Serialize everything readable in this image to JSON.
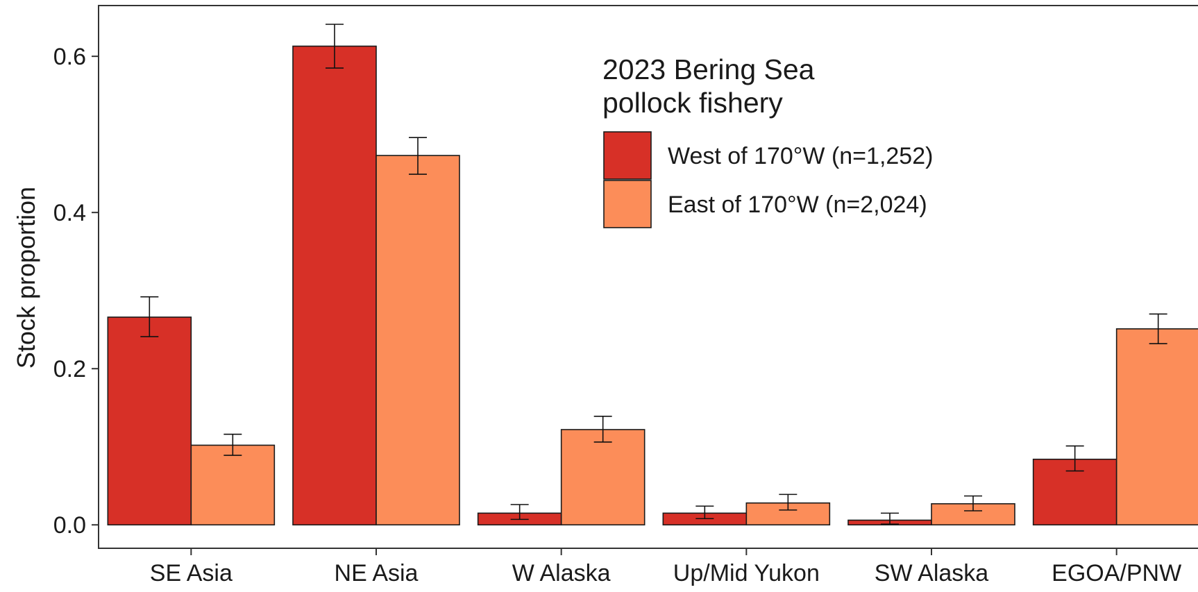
{
  "chart_data": {
    "type": "bar",
    "title": "",
    "xlabel": "",
    "ylabel": "Stock proportion",
    "ylim": [
      -0.03,
      0.665
    ],
    "yticks": [
      0.0,
      0.2,
      0.4,
      0.6
    ],
    "ytick_labels": [
      "0.0",
      "0.2",
      "0.4",
      "0.6"
    ],
    "categories": [
      "SE Asia",
      "NE Asia",
      "W Alaska",
      "Up/Mid Yukon",
      "SW Alaska",
      "EGOA/PNW"
    ],
    "legend": {
      "title_line1": "2023 Bering Sea",
      "title_line2": "pollock fishery",
      "placement": "top-center"
    },
    "series": [
      {
        "name": "West of 170°W (n=1,252)",
        "color": "#d73027",
        "values": [
          0.266,
          0.613,
          0.015,
          0.015,
          0.006,
          0.084
        ],
        "err_low": [
          0.241,
          0.585,
          0.007,
          0.008,
          0.001,
          0.069
        ],
        "err_high": [
          0.292,
          0.641,
          0.026,
          0.024,
          0.015,
          0.101
        ]
      },
      {
        "name": "East of 170°W (n=2,024)",
        "color": "#fc8d59",
        "values": [
          0.102,
          0.473,
          0.122,
          0.028,
          0.027,
          0.251
        ],
        "err_low": [
          0.089,
          0.449,
          0.106,
          0.019,
          0.018,
          0.232
        ],
        "err_high": [
          0.116,
          0.496,
          0.139,
          0.039,
          0.037,
          0.27
        ]
      }
    ],
    "grid": false,
    "colors": {
      "frame": "#333333",
      "bar_outline": "#1a1a1a",
      "text": "#1a1a1a"
    }
  }
}
